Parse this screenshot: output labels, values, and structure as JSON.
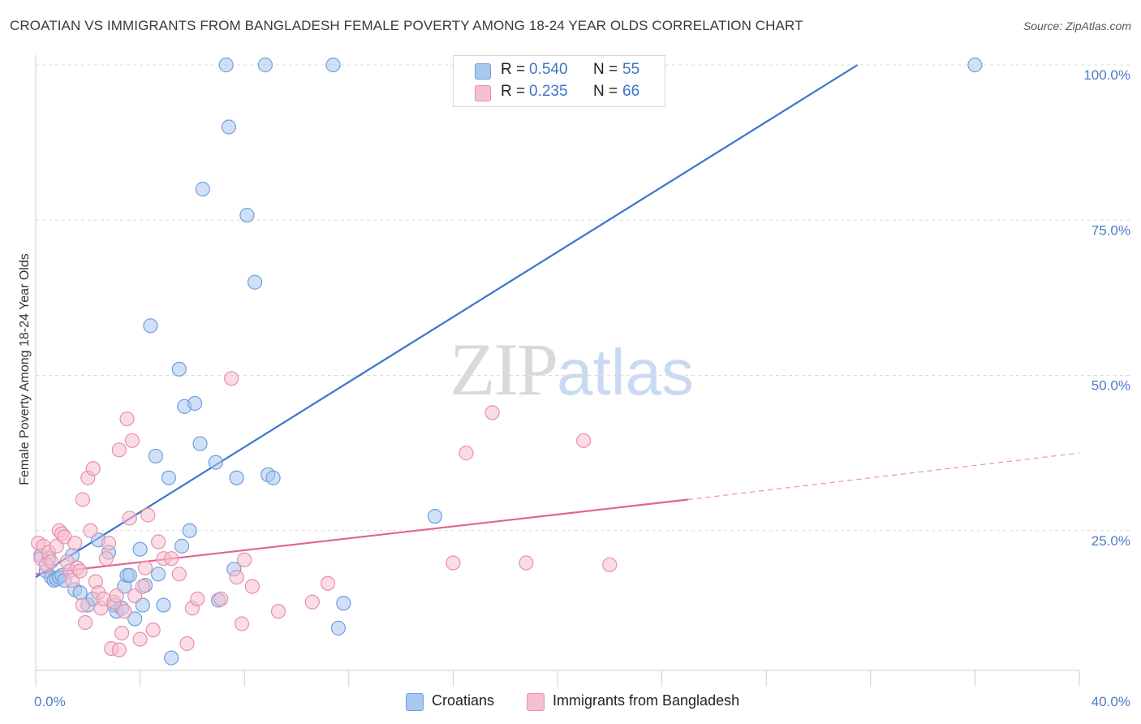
{
  "title": "CROATIAN VS IMMIGRANTS FROM BANGLADESH FEMALE POVERTY AMONG 18-24 YEAR OLDS CORRELATION CHART",
  "source": "Source: ZipAtlas.com",
  "watermark": {
    "zip": "ZIP",
    "atlas": "atlas"
  },
  "colors": {
    "blue_fill": "#a9c8f0",
    "blue_stroke": "#6f9fdc",
    "blue_line": "#3a76cc",
    "pink_fill": "#f6bfd0",
    "pink_stroke": "#e88fac",
    "pink_line": "#e0648f",
    "tick_text": "#4a7cc9",
    "grid": "#dcdcdc"
  },
  "legend": {
    "rows": [
      {
        "r_label": "R =",
        "r_value": "0.540",
        "n_label": "N =",
        "n_value": "55"
      },
      {
        "r_label": "R =",
        "r_value": "0.235",
        "n_label": "N =",
        "n_value": "66"
      }
    ]
  },
  "bottom_legend": {
    "series1": "Croatians",
    "series2": "Immigrants from Bangladesh"
  },
  "chart_data": {
    "type": "scatter",
    "ylabel": "Female Poverty Among 18-24 Year Olds",
    "xlim": [
      0,
      40
    ],
    "ylim": [
      0,
      100
    ],
    "x_tick_labels": [
      "0.0%",
      "40.0%"
    ],
    "y_ticks": [
      {
        "value": 25,
        "label": "25.0%"
      },
      {
        "value": 50,
        "label": "50.0%"
      },
      {
        "value": 75,
        "label": "75.0%"
      },
      {
        "value": 100,
        "label": "100.0%"
      }
    ],
    "grid": true,
    "legend_position": "top-center",
    "series": [
      {
        "name": "Croatians",
        "R": 0.54,
        "N": 55,
        "trend": {
          "x0": 0,
          "y0": 17.5,
          "x1": 31.5,
          "y1": 100
        },
        "points": [
          [
            0.2,
            21.0
          ],
          [
            0.4,
            18.5
          ],
          [
            0.5,
            20.5
          ],
          [
            0.6,
            17.5
          ],
          [
            0.7,
            17.0
          ],
          [
            0.8,
            17.2
          ],
          [
            0.9,
            17.5
          ],
          [
            1.0,
            17.8
          ],
          [
            1.1,
            17.0
          ],
          [
            1.4,
            21.0
          ],
          [
            1.5,
            15.5
          ],
          [
            1.7,
            15.0
          ],
          [
            2.0,
            13.0
          ],
          [
            2.2,
            14.0
          ],
          [
            2.4,
            23.5
          ],
          [
            2.8,
            21.5
          ],
          [
            3.0,
            13.0
          ],
          [
            3.1,
            12.0
          ],
          [
            3.3,
            12.5
          ],
          [
            3.4,
            16.0
          ],
          [
            3.5,
            17.8
          ],
          [
            3.6,
            17.8
          ],
          [
            3.8,
            10.8
          ],
          [
            4.0,
            22.0
          ],
          [
            4.1,
            13.0
          ],
          [
            4.2,
            16.2
          ],
          [
            4.4,
            58.0
          ],
          [
            4.6,
            37.0
          ],
          [
            4.7,
            18.0
          ],
          [
            4.9,
            13.0
          ],
          [
            5.1,
            33.5
          ],
          [
            5.2,
            4.5
          ],
          [
            5.5,
            51.0
          ],
          [
            5.6,
            22.5
          ],
          [
            5.7,
            45.0
          ],
          [
            5.9,
            25.0
          ],
          [
            6.1,
            45.5
          ],
          [
            6.3,
            39.0
          ],
          [
            6.4,
            80.0
          ],
          [
            6.9,
            36.0
          ],
          [
            7.0,
            13.8
          ],
          [
            7.3,
            100.0
          ],
          [
            7.4,
            90.0
          ],
          [
            7.6,
            18.8
          ],
          [
            7.7,
            33.5
          ],
          [
            8.1,
            75.8
          ],
          [
            8.4,
            65.0
          ],
          [
            8.8,
            100.0
          ],
          [
            8.9,
            34.0
          ],
          [
            9.1,
            33.5
          ],
          [
            11.4,
            100.0
          ],
          [
            11.6,
            9.3
          ],
          [
            11.8,
            13.3
          ],
          [
            15.3,
            27.3
          ],
          [
            36.0,
            100.0
          ]
        ]
      },
      {
        "name": "Immigrants from Bangladesh",
        "R": 0.235,
        "N": 66,
        "trend": {
          "x0": 0,
          "y0": 18.0,
          "x1": 25.0,
          "y1": 30.0,
          "dash_x1": 40.0,
          "dash_y1": 37.5
        },
        "points": [
          [
            0.1,
            23.0
          ],
          [
            0.2,
            20.5
          ],
          [
            0.3,
            22.5
          ],
          [
            0.4,
            19.5
          ],
          [
            0.5,
            21.5
          ],
          [
            0.6,
            20.0
          ],
          [
            0.8,
            22.5
          ],
          [
            0.9,
            25.0
          ],
          [
            1.0,
            24.5
          ],
          [
            1.1,
            24.0
          ],
          [
            1.2,
            20.0
          ],
          [
            1.3,
            18.5
          ],
          [
            1.4,
            17.0
          ],
          [
            1.5,
            23.0
          ],
          [
            1.6,
            19.0
          ],
          [
            1.7,
            18.5
          ],
          [
            1.8,
            13.0
          ],
          [
            1.9,
            10.2
          ],
          [
            1.8,
            30.0
          ],
          [
            2.0,
            33.5
          ],
          [
            2.1,
            25.0
          ],
          [
            2.2,
            35.0
          ],
          [
            2.3,
            16.8
          ],
          [
            2.4,
            15.0
          ],
          [
            2.5,
            12.5
          ],
          [
            2.6,
            14.0
          ],
          [
            2.7,
            20.5
          ],
          [
            2.8,
            23.0
          ],
          [
            2.9,
            6.0
          ],
          [
            3.0,
            13.5
          ],
          [
            3.1,
            14.5
          ],
          [
            3.2,
            38.0
          ],
          [
            3.2,
            5.8
          ],
          [
            3.3,
            8.5
          ],
          [
            3.4,
            12.0
          ],
          [
            3.5,
            43.0
          ],
          [
            3.6,
            27.0
          ],
          [
            3.7,
            39.5
          ],
          [
            3.8,
            14.5
          ],
          [
            4.0,
            7.5
          ],
          [
            4.1,
            16.0
          ],
          [
            4.2,
            19.0
          ],
          [
            4.3,
            27.5
          ],
          [
            4.5,
            9.0
          ],
          [
            4.7,
            23.2
          ],
          [
            4.9,
            20.5
          ],
          [
            5.2,
            20.5
          ],
          [
            5.5,
            18.0
          ],
          [
            5.8,
            6.8
          ],
          [
            6.0,
            12.5
          ],
          [
            6.2,
            14.0
          ],
          [
            7.1,
            14.0
          ],
          [
            7.5,
            49.5
          ],
          [
            7.7,
            17.5
          ],
          [
            7.9,
            10.0
          ],
          [
            8.0,
            20.3
          ],
          [
            8.3,
            16.0
          ],
          [
            9.3,
            12.0
          ],
          [
            10.6,
            13.5
          ],
          [
            11.2,
            16.5
          ],
          [
            16.0,
            19.8
          ],
          [
            16.5,
            37.5
          ],
          [
            17.5,
            44.0
          ],
          [
            18.8,
            19.8
          ],
          [
            21.0,
            39.5
          ],
          [
            22.0,
            19.5
          ]
        ]
      }
    ]
  }
}
